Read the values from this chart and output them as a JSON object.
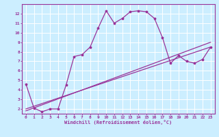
{
  "xlabel": "Windchill (Refroidissement éolien,°C)",
  "xlim": [
    -0.5,
    23.5
  ],
  "ylim": [
    1.5,
    13.0
  ],
  "xticks": [
    0,
    1,
    2,
    3,
    4,
    5,
    6,
    7,
    8,
    9,
    10,
    11,
    12,
    13,
    14,
    15,
    16,
    17,
    18,
    19,
    20,
    21,
    22,
    23
  ],
  "yticks": [
    2,
    3,
    4,
    5,
    6,
    7,
    8,
    9,
    10,
    11,
    12
  ],
  "bg_color": "#cceeff",
  "line_color": "#993399",
  "grid_color": "#ffffff",
  "curve1_x": [
    0,
    1,
    2,
    3,
    4,
    5,
    6,
    7,
    8,
    9,
    10,
    11,
    12,
    13,
    14,
    15,
    16,
    17,
    18,
    19,
    20,
    21,
    22,
    23
  ],
  "curve1_y": [
    4.6,
    2.1,
    1.7,
    2.0,
    2.0,
    4.5,
    7.5,
    7.7,
    8.5,
    10.5,
    12.3,
    11.0,
    11.5,
    12.2,
    12.3,
    12.2,
    11.5,
    9.5,
    6.8,
    7.6,
    7.0,
    6.8,
    7.2,
    8.5
  ],
  "curve2_x": [
    0,
    23
  ],
  "curve2_y": [
    2.0,
    8.5
  ],
  "curve3_x": [
    0,
    23
  ],
  "curve3_y": [
    1.8,
    9.0
  ]
}
